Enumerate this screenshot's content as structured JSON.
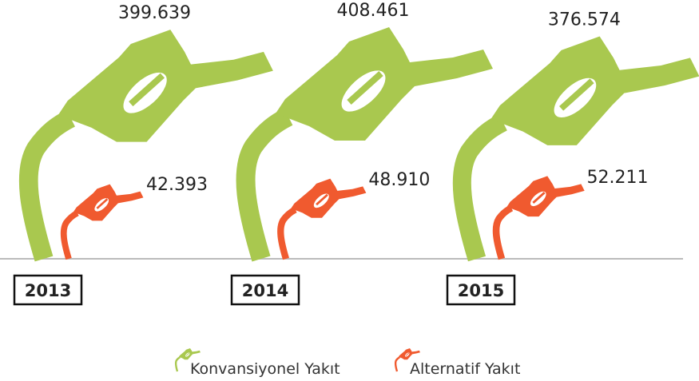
{
  "chart_data": {
    "type": "pictogram",
    "categories": [
      "2013",
      "2014",
      "2015"
    ],
    "series": [
      {
        "name": "Konvansiyonel Yakıt",
        "color": "#a9c84f",
        "values": [
          399639,
          408461,
          376574
        ],
        "value_labels": [
          "399.639",
          "408.461",
          "376.574"
        ]
      },
      {
        "name": "Alternatif Yakıt",
        "color": "#f05a2f",
        "values": [
          42393,
          48910,
          52211
        ],
        "value_labels": [
          "42.393",
          "48.910",
          "52.211"
        ]
      }
    ]
  }
}
